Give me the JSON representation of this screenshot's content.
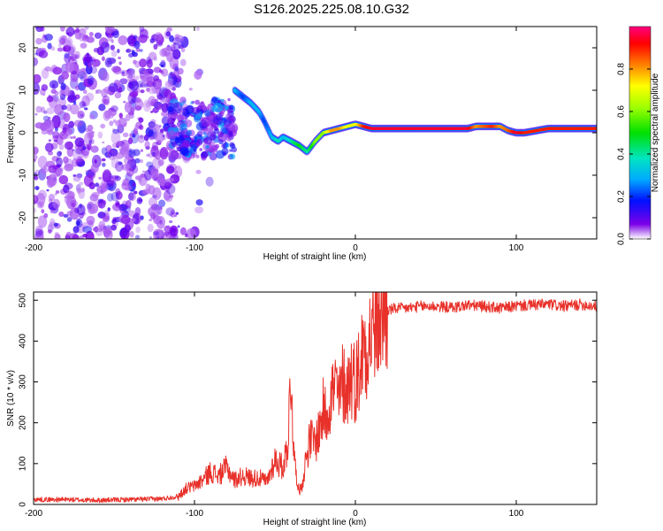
{
  "title": "S126.2025.225.08.10.G32",
  "chart_data": [
    {
      "type": "heatmap",
      "name": "spectrogram",
      "xlabel": "Height of straight line (km)",
      "ylabel": "Frequency (Hz)",
      "xlim": [
        -200,
        150
      ],
      "ylim": [
        -25,
        25
      ],
      "xticks": [
        -200,
        -100,
        0,
        100
      ],
      "yticks": [
        -20,
        -10,
        0,
        10,
        20
      ],
      "colorbar": {
        "label": "Normalized spectral amplitude",
        "range": [
          0.0,
          1.0
        ],
        "ticks": [
          0.0,
          0.2,
          0.4,
          0.6,
          0.8
        ]
      },
      "ridge": {
        "x": [
          -75,
          -70,
          -65,
          -60,
          -57,
          -52,
          -48,
          -45,
          -40,
          -35,
          -30,
          -25,
          -20,
          -15,
          -10,
          -5,
          0,
          5,
          10,
          20,
          40,
          60,
          70,
          75,
          80,
          85,
          90,
          95,
          100,
          105,
          120,
          150
        ],
        "y": [
          10,
          8.5,
          7,
          5,
          3,
          -1,
          -2,
          -1,
          -2,
          -3,
          -4.5,
          -2,
          0,
          0.5,
          1,
          1.5,
          2,
          1.5,
          1,
          1,
          1,
          1,
          1,
          1.5,
          1.5,
          1.5,
          1.5,
          0.5,
          0,
          0,
          1,
          1
        ],
        "amplitude": [
          0.3,
          0.2,
          0.3,
          0.3,
          0.2,
          0.3,
          0.4,
          0.3,
          0.4,
          0.5,
          0.4,
          0.6,
          0.6,
          0.8,
          0.8,
          0.7,
          0.7,
          0.9,
          0.95,
          0.95,
          0.95,
          0.95,
          0.95,
          0.8,
          0.85,
          0.9,
          0.8,
          0.85,
          0.95,
          0.9,
          0.9,
          0.9
        ]
      },
      "noise_region": {
        "x": [
          -200,
          -110
        ],
        "y": [
          -25,
          25
        ]
      }
    },
    {
      "type": "line",
      "name": "snr",
      "xlabel": "Height of straight line (km)",
      "ylabel": "SNR (10 * v/v)",
      "xlim": [
        -200,
        150
      ],
      "ylim": [
        0,
        520
      ],
      "xticks": [
        -200,
        -100,
        0,
        100
      ],
      "yticks": [
        0,
        100,
        200,
        300,
        400,
        500
      ],
      "color": "#e8312a",
      "series": [
        {
          "name": "SNR",
          "x": [
            -200,
            -180,
            -160,
            -140,
            -120,
            -110,
            -105,
            -100,
            -95,
            -90,
            -85,
            -80,
            -75,
            -70,
            -65,
            -60,
            -55,
            -50,
            -45,
            -42,
            -40,
            -38,
            -36,
            -35,
            -33,
            -30,
            -28,
            -25,
            -22,
            -20,
            -18,
            -15,
            -12,
            -10,
            -8,
            -5,
            -3,
            0,
            3,
            5,
            8,
            10,
            12,
            15,
            18,
            20,
            25,
            30,
            35,
            40,
            50,
            60,
            70,
            80,
            90,
            100,
            110,
            120,
            130,
            140,
            150
          ],
          "y": [
            12,
            12,
            10,
            12,
            14,
            20,
            40,
            45,
            60,
            80,
            70,
            90,
            60,
            70,
            65,
            65,
            55,
            110,
            90,
            150,
            320,
            110,
            60,
            30,
            50,
            130,
            160,
            150,
            190,
            230,
            220,
            270,
            290,
            250,
            300,
            280,
            320,
            300,
            340,
            390,
            400,
            420,
            440,
            460,
            470,
            475,
            480,
            480,
            482,
            485,
            485,
            482,
            488,
            485,
            480,
            486,
            488,
            490,
            485,
            490,
            485
          ]
        }
      ]
    }
  ]
}
